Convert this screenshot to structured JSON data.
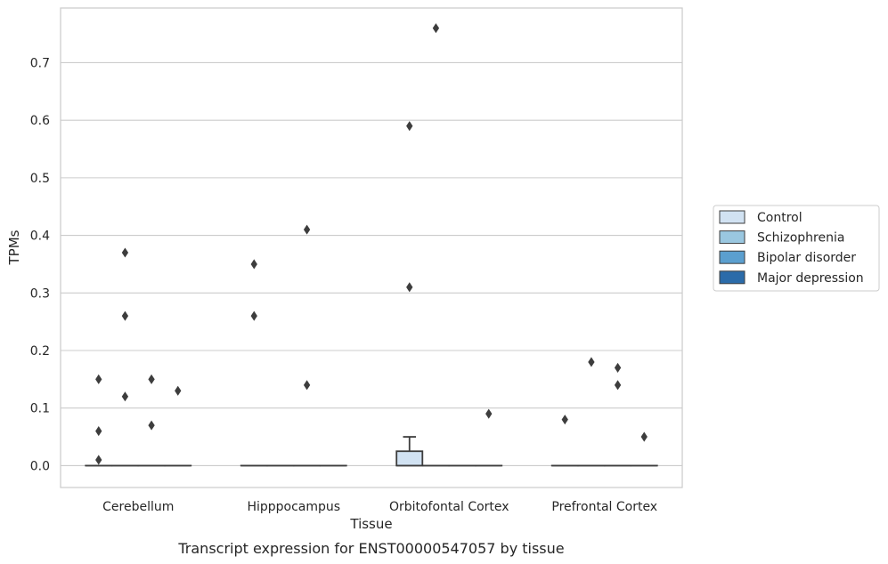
{
  "chart_data": {
    "type": "box",
    "title": "",
    "caption": "Transcript expression for ENST00000547057 by tissue",
    "xlabel": "Tissue",
    "ylabel": "TPMs",
    "ylim": [
      -0.038,
      0.795
    ],
    "yticks": [
      0.0,
      0.1,
      0.2,
      0.3,
      0.4,
      0.5,
      0.6,
      0.7
    ],
    "ytick_labels": [
      "0.0",
      "0.1",
      "0.2",
      "0.3",
      "0.4",
      "0.5",
      "0.6",
      "0.7"
    ],
    "grid": "horizontal",
    "legend_position": "right",
    "categories": [
      "Cerebellum",
      "Hipppocampus",
      "Orbitofontal Cortex",
      "Prefrontal Cortex"
    ],
    "series": [
      {
        "name": "Control",
        "color": "#d1e2f2",
        "boxes": [
          {
            "q1": 0,
            "median": 0,
            "q3": 0,
            "whisker_low": 0,
            "whisker_high": 0,
            "outliers": [
              0.01,
              0.06,
              0.15
            ]
          },
          {
            "q1": 0,
            "median": 0,
            "q3": 0,
            "whisker_low": 0,
            "whisker_high": 0,
            "outliers": [
              0.26,
              0.35
            ]
          },
          {
            "q1": 0,
            "median": 0,
            "q3": 0.025,
            "whisker_low": 0,
            "whisker_high": 0.05,
            "outliers": [
              0.31,
              0.59
            ]
          },
          {
            "q1": 0,
            "median": 0,
            "q3": 0,
            "whisker_low": 0,
            "whisker_high": 0,
            "outliers": [
              0.08
            ]
          }
        ]
      },
      {
        "name": "Schizophrenia",
        "color": "#9ac7e0",
        "boxes": [
          {
            "q1": 0,
            "median": 0,
            "q3": 0,
            "whisker_low": 0,
            "whisker_high": 0,
            "outliers": [
              0.12,
              0.26,
              0.37
            ]
          },
          {
            "q1": 0,
            "median": 0,
            "q3": 0,
            "whisker_low": 0,
            "whisker_high": 0,
            "outliers": []
          },
          {
            "q1": 0,
            "median": 0,
            "q3": 0,
            "whisker_low": 0,
            "whisker_high": 0,
            "outliers": [
              0.76
            ]
          },
          {
            "q1": 0,
            "median": 0,
            "q3": 0,
            "whisker_low": 0,
            "whisker_high": 0,
            "outliers": [
              0.18
            ]
          }
        ]
      },
      {
        "name": "Bipolar disorder",
        "color": "#5b9fcf",
        "boxes": [
          {
            "q1": 0,
            "median": 0,
            "q3": 0,
            "whisker_low": 0,
            "whisker_high": 0,
            "outliers": [
              0.07,
              0.15
            ]
          },
          {
            "q1": 0,
            "median": 0,
            "q3": 0,
            "whisker_low": 0,
            "whisker_high": 0,
            "outliers": [
              0.14,
              0.41
            ]
          },
          {
            "q1": 0,
            "median": 0,
            "q3": 0,
            "whisker_low": 0,
            "whisker_high": 0,
            "outliers": []
          },
          {
            "q1": 0,
            "median": 0,
            "q3": 0,
            "whisker_low": 0,
            "whisker_high": 0,
            "outliers": [
              0.14,
              0.17
            ]
          }
        ]
      },
      {
        "name": "Major depression",
        "color": "#2b6ba9",
        "boxes": [
          {
            "q1": 0,
            "median": 0,
            "q3": 0,
            "whisker_low": 0,
            "whisker_high": 0,
            "outliers": [
              0.13
            ]
          },
          {
            "q1": 0,
            "median": 0,
            "q3": 0,
            "whisker_low": 0,
            "whisker_high": 0,
            "outliers": []
          },
          {
            "q1": 0,
            "median": 0,
            "q3": 0,
            "whisker_low": 0,
            "whisker_high": 0,
            "outliers": [
              0.09
            ]
          },
          {
            "q1": 0,
            "median": 0,
            "q3": 0,
            "whisker_low": 0,
            "whisker_high": 0,
            "outliers": [
              0.05
            ]
          }
        ]
      }
    ]
  }
}
